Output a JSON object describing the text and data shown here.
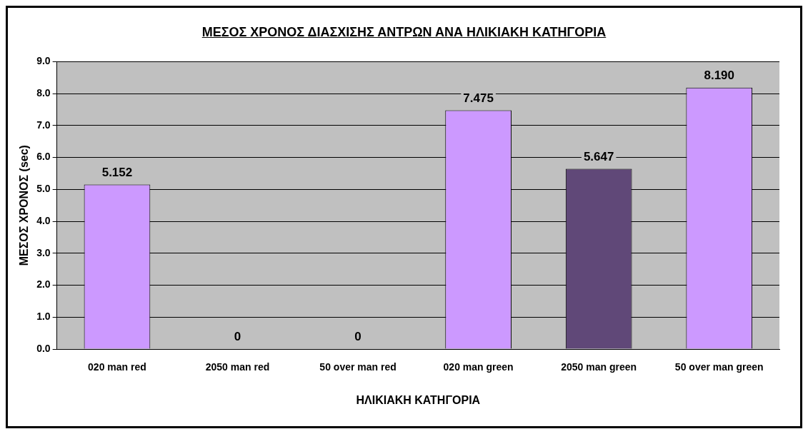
{
  "chart_data": {
    "type": "bar",
    "title": "ΜΕΣΟΣ ΧΡΟΝΟΣ ΔΙΑΣΧΙΣΗΣ ΑΝΤΡΩΝ ΑΝΑ ΗΛΙΚΙΑΚΗ ΚΑΤΗΓΟΡΙΑ",
    "xlabel": "ΗΛΙΚΙΑΚΗ ΚΑΤΗΓΟΡΙΑ",
    "ylabel": "ΜΕΣΟΣ ΧΡΟΝΟΣ (sec)",
    "categories": [
      "020 man red",
      "2050 man red",
      "50 over man red",
      "020 man green",
      "2050 man green",
      "50 over man green"
    ],
    "values": [
      5.152,
      0,
      0,
      7.475,
      5.647,
      8.19
    ],
    "value_labels": [
      "5.152",
      "0",
      "0",
      "7.475",
      "5.647",
      "8.190"
    ],
    "colors": [
      "#cc99ff",
      "#cc99ff",
      "#cc99ff",
      "#cc99ff",
      "#604878",
      "#cc99ff"
    ],
    "ylim": [
      0,
      9
    ],
    "yticks": [
      {
        "value": 0,
        "label": "0.0"
      },
      {
        "value": 1,
        "label": "1.0"
      },
      {
        "value": 2,
        "label": "2.0"
      },
      {
        "value": 3,
        "label": "3.0"
      },
      {
        "value": 4,
        "label": "4.0"
      },
      {
        "value": 5,
        "label": "5.0"
      },
      {
        "value": 6,
        "label": "6.0"
      },
      {
        "value": 7,
        "label": "7.0"
      },
      {
        "value": 8,
        "label": "8.0"
      },
      {
        "value": 9,
        "label": "9.0"
      }
    ],
    "grid": "y",
    "legend": false
  }
}
